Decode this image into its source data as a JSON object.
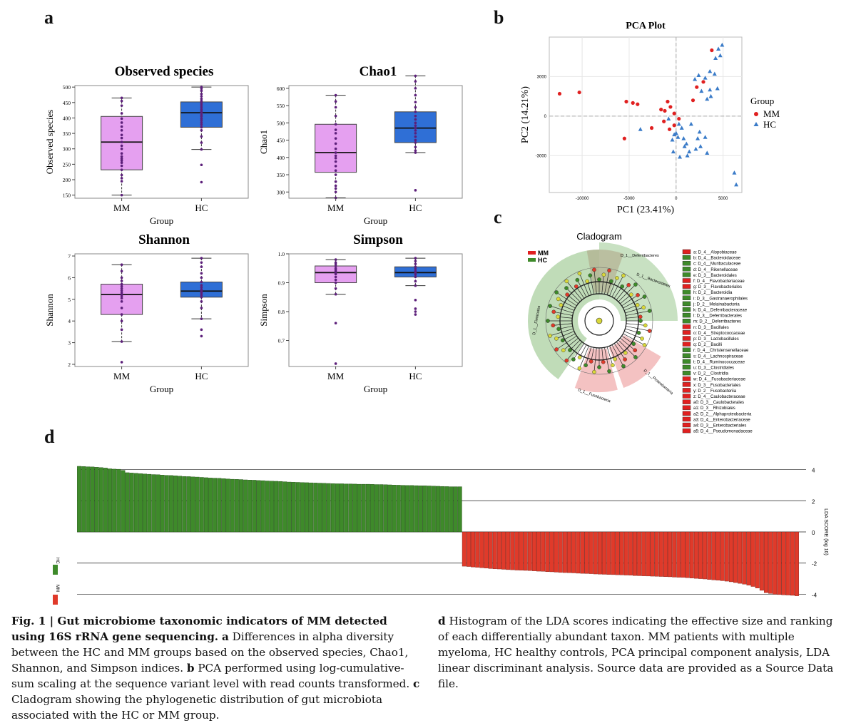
{
  "panels": {
    "a": "a",
    "b": "b",
    "c": "c",
    "d": "d"
  },
  "colors": {
    "mm_box": "#e5a0f0",
    "hc_box": "#2f6fd6",
    "points": "#5c1f7a",
    "mm_red": "#e02020",
    "hc_blue": "#3a7bc8",
    "green": "#3e8a2a",
    "red_bar": "#e03a2a"
  },
  "boxplots": [
    {
      "title": "Observed species",
      "ylabel": "Observed species",
      "xlabel": "Group",
      "yticks": [
        "150",
        "200",
        "250",
        "300",
        "350",
        "400",
        "450",
        "500"
      ],
      "ytick_values": [
        150,
        200,
        250,
        300,
        350,
        400,
        450,
        500
      ],
      "ylim": [
        140,
        505
      ],
      "groups": [
        {
          "name": "MM",
          "min": 150,
          "q1": 232,
          "median": 322,
          "q3": 405,
          "max": 465,
          "points": [
            150,
            195,
            205,
            215,
            232,
            245,
            255,
            262,
            268,
            275,
            285,
            300,
            310,
            322,
            335,
            345,
            360,
            372,
            385,
            398,
            415,
            440,
            455,
            465
          ]
        },
        {
          "name": "HC",
          "min": 298,
          "q1": 370,
          "median": 417,
          "q3": 452,
          "max": 500,
          "points": [
            192,
            248,
            298,
            320,
            340,
            360,
            370,
            378,
            385,
            392,
            398,
            405,
            410,
            417,
            422,
            428,
            435,
            442,
            448,
            455,
            462,
            470,
            478,
            488,
            495,
            500
          ]
        }
      ]
    },
    {
      "title": "Chao1",
      "ylabel": "Chao1",
      "xlabel": "Group",
      "yticks": [
        "300",
        "350",
        "400",
        "450",
        "500",
        "550",
        "600"
      ],
      "ytick_values": [
        300,
        350,
        400,
        450,
        500,
        550,
        600
      ],
      "ylim": [
        282,
        608
      ],
      "groups": [
        {
          "name": "MM",
          "min": 283,
          "q1": 357,
          "median": 414,
          "q3": 496,
          "max": 580,
          "points": [
            283,
            300,
            310,
            318,
            330,
            350,
            362,
            375,
            388,
            398,
            405,
            414,
            425,
            440,
            455,
            470,
            480,
            496,
            520,
            545,
            562,
            580
          ]
        },
        {
          "name": "HC",
          "min": 414,
          "q1": 443,
          "median": 485,
          "q3": 532,
          "max": 636,
          "points": [
            305,
            414,
            420,
            430,
            443,
            450,
            460,
            470,
            478,
            485,
            492,
            500,
            510,
            520,
            532,
            545,
            560,
            580,
            600,
            620,
            636
          ]
        }
      ]
    },
    {
      "title": "Shannon",
      "ylabel": "Shannon",
      "xlabel": "Group",
      "yticks": [
        "2",
        "3",
        "4",
        "5",
        "6",
        "7"
      ],
      "ytick_values": [
        2,
        3,
        4,
        5,
        6,
        7
      ],
      "ylim": [
        1.9,
        7.1
      ],
      "groups": [
        {
          "name": "MM",
          "min": 3.05,
          "q1": 4.3,
          "median": 5.22,
          "q3": 5.7,
          "max": 6.6,
          "points": [
            2.1,
            3.05,
            3.6,
            4.0,
            4.3,
            4.6,
            4.9,
            5.05,
            5.15,
            5.22,
            5.3,
            5.4,
            5.5,
            5.6,
            5.7,
            5.85,
            6.0,
            6.3,
            6.6
          ]
        },
        {
          "name": "HC",
          "min": 4.1,
          "q1": 5.1,
          "median": 5.38,
          "q3": 5.8,
          "max": 6.9,
          "points": [
            3.3,
            3.6,
            4.1,
            4.6,
            4.9,
            5.1,
            5.2,
            5.3,
            5.38,
            5.45,
            5.55,
            5.65,
            5.8,
            6.0,
            6.2,
            6.5,
            6.7,
            6.9
          ]
        }
      ]
    },
    {
      "title": "Simpson",
      "ylabel": "Simpson",
      "xlabel": "Group",
      "yticks": [
        "0.7",
        "0.8",
        "0.9",
        "1.0"
      ],
      "ytick_values": [
        0.7,
        0.8,
        0.9,
        1.0
      ],
      "ylim": [
        0.61,
        1.0
      ],
      "groups": [
        {
          "name": "MM",
          "min": 0.86,
          "q1": 0.9,
          "median": 0.935,
          "q3": 0.958,
          "max": 0.98,
          "points": [
            0.62,
            0.76,
            0.86,
            0.88,
            0.9,
            0.91,
            0.92,
            0.93,
            0.935,
            0.94,
            0.945,
            0.95,
            0.958,
            0.965,
            0.97,
            0.98
          ]
        },
        {
          "name": "HC",
          "min": 0.89,
          "q1": 0.92,
          "median": 0.935,
          "q3": 0.955,
          "max": 0.985,
          "points": [
            0.79,
            0.8,
            0.81,
            0.84,
            0.89,
            0.905,
            0.92,
            0.928,
            0.935,
            0.94,
            0.948,
            0.955,
            0.965,
            0.975,
            0.985
          ]
        }
      ]
    }
  ],
  "chart_data": [
    {
      "type": "scatter",
      "title": "PCA Plot",
      "xlabel": "PC1 (23.41%)",
      "ylabel": "PC2 (14.21%)",
      "xticks": [
        "-10000",
        "-5000",
        "0",
        "5000"
      ],
      "xtick_values": [
        -10000,
        -5000,
        0,
        5000
      ],
      "yticks": [
        "-3000",
        "0",
        "3000"
      ],
      "ytick_values": [
        -3000,
        0,
        3000
      ],
      "xlim": [
        -13500,
        7000
      ],
      "ylim": [
        -5800,
        6000
      ],
      "legend_title": "Group",
      "series": [
        {
          "name": "MM",
          "marker": "circle",
          "points": [
            [
              -12400,
              1700
            ],
            [
              -10300,
              1800
            ],
            [
              -5300,
              1100
            ],
            [
              -4600,
              1000
            ],
            [
              -4100,
              900
            ],
            [
              -2600,
              -900
            ],
            [
              -1600,
              500
            ],
            [
              -1200,
              400
            ],
            [
              -900,
              1100
            ],
            [
              -600,
              700
            ],
            [
              -1300,
              -400
            ],
            [
              -700,
              -1000
            ],
            [
              -200,
              -700
            ],
            [
              300,
              -200
            ],
            [
              1800,
              1200
            ],
            [
              2200,
              2200
            ],
            [
              2900,
              2600
            ],
            [
              3800,
              5000
            ],
            [
              -5500,
              -1700
            ],
            [
              -200,
              200
            ]
          ]
        },
        {
          "name": "HC",
          "marker": "triangle",
          "points": [
            [
              -3800,
              -1000
            ],
            [
              -400,
              -1800
            ],
            [
              0,
              -1300
            ],
            [
              300,
              -600
            ],
            [
              600,
              -900
            ],
            [
              800,
              -1700
            ],
            [
              1100,
              -2100
            ],
            [
              1400,
              -2700
            ],
            [
              900,
              -2300
            ],
            [
              2100,
              -2500
            ],
            [
              2600,
              -2300
            ],
            [
              3300,
              -2800
            ],
            [
              2300,
              -1700
            ],
            [
              3100,
              -1600
            ],
            [
              2500,
              -1200
            ],
            [
              1600,
              -600
            ],
            [
              -300,
              -2700
            ],
            [
              400,
              -3100
            ],
            [
              1200,
              -3000
            ],
            [
              200,
              -1600
            ],
            [
              -800,
              -200
            ],
            [
              -200,
              -1400
            ],
            [
              2000,
              2800
            ],
            [
              2400,
              3100
            ],
            [
              3100,
              2900
            ],
            [
              3600,
              3400
            ],
            [
              4100,
              3200
            ],
            [
              2700,
              1900
            ],
            [
              3600,
              2000
            ],
            [
              4400,
              2100
            ],
            [
              4200,
              4400
            ],
            [
              4500,
              5100
            ],
            [
              4700,
              4600
            ],
            [
              4900,
              5400
            ],
            [
              6200,
              -4300
            ],
            [
              6400,
              -5200
            ],
            [
              3300,
              1300
            ],
            [
              3700,
              1500
            ]
          ]
        }
      ]
    },
    {
      "type": "bar",
      "title": "",
      "ylabel": "LDA SCORE (log 10)",
      "yticks": [
        "-4",
        "-2",
        "0",
        "2",
        "4"
      ],
      "ytick_values": [
        -4,
        -2,
        0,
        2,
        4
      ],
      "ylim": [
        -4.3,
        4.3
      ],
      "legend": [
        "HC",
        "MM"
      ],
      "series": [
        {
          "name": "HC",
          "values": [
            4.21,
            4.2,
            4.18,
            4.17,
            4.15,
            4.13,
            4.1,
            4.05,
            4.03,
            4.02,
            3.95,
            3.8,
            3.78,
            3.76,
            3.74,
            3.72,
            3.7,
            3.68,
            3.67,
            3.65,
            3.63,
            3.62,
            3.6,
            3.58,
            3.56,
            3.55,
            3.53,
            3.52,
            3.5,
            3.48,
            3.46,
            3.45,
            3.44,
            3.42,
            3.4,
            3.38,
            3.37,
            3.36,
            3.34,
            3.33,
            3.32,
            3.3,
            3.29,
            3.27,
            3.26,
            3.25,
            3.24,
            3.22,
            3.2,
            3.19,
            3.18,
            3.17,
            3.16,
            3.15,
            3.14,
            3.13,
            3.12,
            3.11,
            3.1,
            3.09,
            3.09,
            3.08,
            3.08,
            3.07,
            3.06,
            3.06,
            3.06,
            3.05,
            3.04,
            3.04,
            3.03,
            3.02,
            3.01,
            3.0,
            2.99,
            2.98,
            2.98,
            2.97,
            2.96,
            2.96,
            2.95,
            2.94,
            2.93,
            2.92,
            2.91,
            2.9,
            2.9,
            2.9
          ]
        },
        {
          "name": "MM",
          "values": [
            -2.2,
            -2.22,
            -2.25,
            -2.27,
            -2.3,
            -2.32,
            -2.35,
            -2.37,
            -2.38,
            -2.4,
            -2.42,
            -2.43,
            -2.45,
            -2.46,
            -2.47,
            -2.48,
            -2.5,
            -2.52,
            -2.53,
            -2.55,
            -2.56,
            -2.58,
            -2.6,
            -2.61,
            -2.62,
            -2.63,
            -2.65,
            -2.66,
            -2.67,
            -2.68,
            -2.7,
            -2.71,
            -2.72,
            -2.73,
            -2.74,
            -2.75,
            -2.76,
            -2.77,
            -2.78,
            -2.8,
            -2.81,
            -2.82,
            -2.83,
            -2.84,
            -2.85,
            -2.86,
            -2.87,
            -2.88,
            -2.9,
            -2.91,
            -2.92,
            -2.94,
            -2.96,
            -2.98,
            -3.0,
            -3.02,
            -3.05,
            -3.08,
            -3.1,
            -3.13,
            -3.16,
            -3.2,
            -3.25,
            -3.3,
            -3.35,
            -3.42,
            -3.5,
            -3.6,
            -3.75,
            -3.9,
            -3.95,
            -4.0,
            -4.02,
            -4.04,
            -4.05,
            -4.07,
            -4.1
          ]
        }
      ]
    }
  ],
  "cladogram": {
    "title": "Cladogram",
    "legend": [
      "MM",
      "HC"
    ],
    "arc_labels": [
      "D_1__Deferribacteres",
      "D_1__Bacteroidetes",
      "D_1__Firmicutes",
      "D_1__Fusobacteria",
      "D_1__Proteobacteria"
    ],
    "taxa": [
      {
        "label": "a: D_4__Alopobiaceae",
        "color": "red"
      },
      {
        "label": "b: D_4__Bacteroidaceae",
        "color": "green"
      },
      {
        "label": "c: D_4__Muribaculaceae",
        "color": "green"
      },
      {
        "label": "d: D_4__Rikenellaceae",
        "color": "green"
      },
      {
        "label": "e: D_3__Bacteroidales",
        "color": "green"
      },
      {
        "label": "f: D_4__Flavobacteriaceae",
        "color": "red"
      },
      {
        "label": "g: D_3__Flavobacteriales",
        "color": "red"
      },
      {
        "label": "h: D_2__Bacteroidia",
        "color": "green"
      },
      {
        "label": "i: D_3__Gastranaerophilales",
        "color": "green"
      },
      {
        "label": "j: D_2__Melainabacteria",
        "color": "green"
      },
      {
        "label": "k: D_4__Deferribacteraceae",
        "color": "green"
      },
      {
        "label": "l: D_3__Deferribacterales",
        "color": "green"
      },
      {
        "label": "m: D_2__Deferribacteres",
        "color": "green"
      },
      {
        "label": "n: D_3__Bacillales",
        "color": "red"
      },
      {
        "label": "o: D_4__Streptococcaceae",
        "color": "red"
      },
      {
        "label": "p: D_3__Lactobacillales",
        "color": "red"
      },
      {
        "label": "q: D_2__Bacilli",
        "color": "red"
      },
      {
        "label": "r: D_4__Christensenellaceae",
        "color": "green"
      },
      {
        "label": "s: D_4__Lachnospiraceae",
        "color": "green"
      },
      {
        "label": "t: D_4__Ruminococcaceae",
        "color": "green"
      },
      {
        "label": "u: D_3__Clostridiales",
        "color": "green"
      },
      {
        "label": "v: D_2__Clostridia",
        "color": "green"
      },
      {
        "label": "w: D_4__Fusobacteriaceae",
        "color": "red"
      },
      {
        "label": "x: D_3__Fusobacteriales",
        "color": "red"
      },
      {
        "label": "y: D_2__Fusobacteriia",
        "color": "red"
      },
      {
        "label": "z: D_4__Caulobacteraceae",
        "color": "red"
      },
      {
        "label": "a0: D_3__Caulobacterales",
        "color": "red"
      },
      {
        "label": "a1: D_3__Rhizobiales",
        "color": "red"
      },
      {
        "label": "a2: D_2__Alphaproteobacteria",
        "color": "red"
      },
      {
        "label": "a3: D_4__Enterobacteriaceae",
        "color": "red"
      },
      {
        "label": "a4: D_3__Enterobacteriales",
        "color": "red"
      },
      {
        "label": "a5: D_4__Pseudomonadaceae",
        "color": "red"
      }
    ]
  },
  "caption": {
    "fig_label": "Fig. 1 | Gut microbiome taxonomic indicators of MM detected using 16S rRNA gene sequencing.",
    "a_letter": "a",
    "a_text": " Differences in alpha diversity between the HC and MM groups based on the observed species, Chao1, Shannon, and Simpson indices. ",
    "b_letter": "b",
    "b_text": " PCA performed using log-cumulative-sum scaling at the sequence variant level with read counts transformed. ",
    "c_letter": "c",
    "c_text": " Cladogram showing the phylogenetic distribution of gut microbiota associated with the HC or MM group. ",
    "d_letter": "d",
    "d_text": " Histogram of the LDA scores indicating the effective size and ranking of each differentially abundant taxon. MM patients with multiple myeloma, HC healthy controls, PCA principal component analysis, LDA linear discriminant analysis. Source data are provided as a Source Data file."
  }
}
